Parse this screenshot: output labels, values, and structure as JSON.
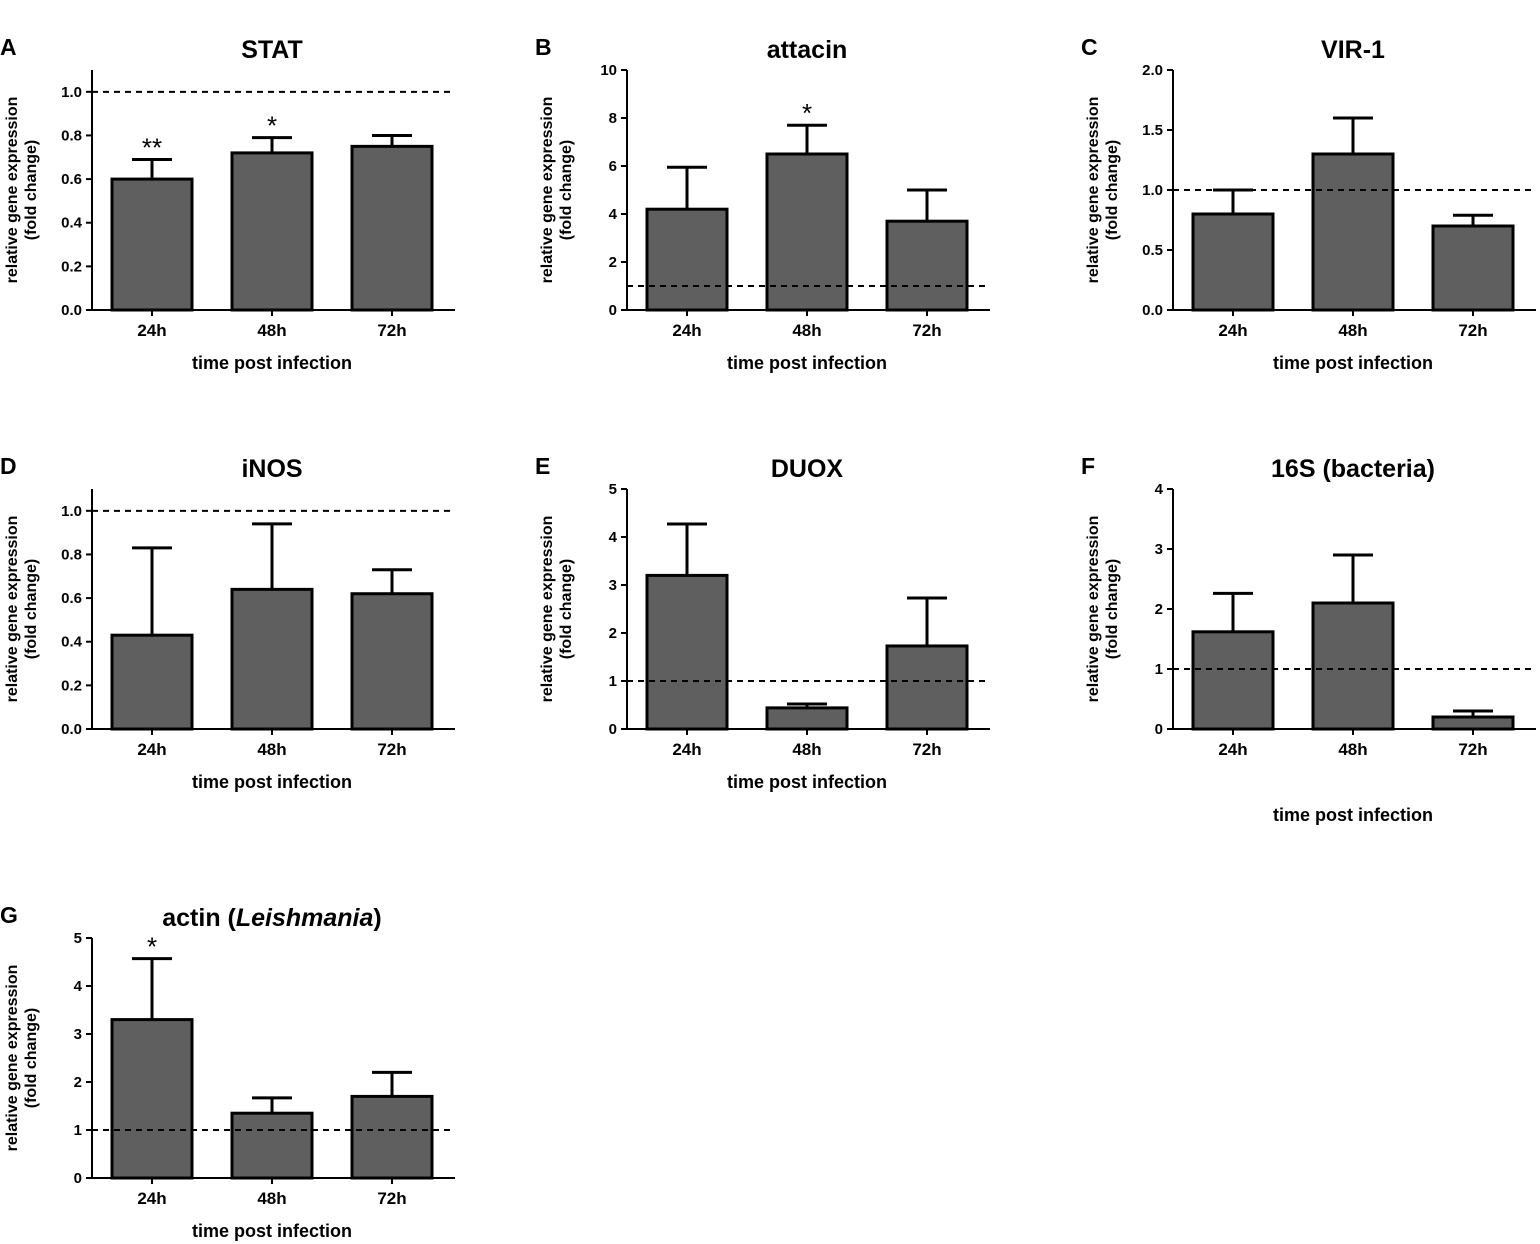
{
  "chart_data": [
    {
      "panel": "A",
      "type": "bar",
      "title": "STAT",
      "title_italic": "",
      "title_suffix": "",
      "ylabel": [
        "relative gene expression",
        "(fold change)"
      ],
      "xlabel": "time post infection",
      "categories": [
        "24h",
        "48h",
        "72h"
      ],
      "values": [
        0.6,
        0.72,
        0.75
      ],
      "errors_upper": [
        0.69,
        0.79,
        0.8
      ],
      "significance": [
        "**",
        "*",
        ""
      ],
      "ylim": [
        0,
        1.1
      ],
      "yticks": [
        0,
        0.2,
        0.4,
        0.6,
        0.8,
        1.0
      ],
      "tick_decimals": 1,
      "reference_line": 1.0
    },
    {
      "panel": "B",
      "type": "bar",
      "title": "attacin",
      "title_italic": "",
      "title_suffix": "",
      "ylabel": [
        "relative gene expression",
        "(fold change)"
      ],
      "xlabel": "time post infection",
      "categories": [
        "24h",
        "48h",
        "72h"
      ],
      "values": [
        4.2,
        6.5,
        3.7
      ],
      "errors_upper": [
        5.95,
        7.7,
        5.0
      ],
      "significance": [
        "",
        "*",
        ""
      ],
      "ylim": [
        0,
        10
      ],
      "yticks": [
        0,
        2,
        4,
        6,
        8,
        10
      ],
      "tick_decimals": 0,
      "reference_line": 1
    },
    {
      "panel": "C",
      "type": "bar",
      "title": "VIR-1",
      "title_italic": "",
      "title_suffix": "",
      "ylabel": [
        "relative gene expression",
        "(fold change)"
      ],
      "xlabel": "time post infection",
      "categories": [
        "24h",
        "48h",
        "72h"
      ],
      "values": [
        0.8,
        1.3,
        0.7
      ],
      "errors_upper": [
        1.0,
        1.6,
        0.79
      ],
      "significance": [
        "",
        "",
        ""
      ],
      "ylim": [
        0,
        2.0
      ],
      "yticks": [
        0,
        0.5,
        1.0,
        1.5,
        2.0
      ],
      "tick_decimals": 1,
      "reference_line": 1.0
    },
    {
      "panel": "D",
      "type": "bar",
      "title": "iNOS",
      "title_italic": "",
      "title_suffix": "",
      "ylabel": [
        "relative gene expression",
        "(fold change)"
      ],
      "xlabel": "time post infection",
      "categories": [
        "24h",
        "48h",
        "72h"
      ],
      "values": [
        0.43,
        0.64,
        0.62
      ],
      "errors_upper": [
        0.83,
        0.94,
        0.73
      ],
      "significance": [
        "",
        "",
        ""
      ],
      "ylim": [
        0,
        1.1
      ],
      "yticks": [
        0,
        0.2,
        0.4,
        0.6,
        0.8,
        1.0
      ],
      "tick_decimals": 1,
      "reference_line": 1.0
    },
    {
      "panel": "E",
      "type": "bar",
      "title": "DUOX",
      "title_italic": "",
      "title_suffix": "",
      "ylabel": [
        "relative gene expression",
        "(fold change)"
      ],
      "xlabel": "time post infection",
      "categories": [
        "24h",
        "48h",
        "72h"
      ],
      "values": [
        3.2,
        0.44,
        1.73
      ],
      "errors_upper": [
        4.27,
        0.52,
        2.73
      ],
      "significance": [
        "",
        "",
        ""
      ],
      "ylim": [
        0,
        5
      ],
      "yticks": [
        0,
        1,
        2,
        3,
        4,
        5
      ],
      "tick_decimals": 0,
      "reference_line": 1
    },
    {
      "panel": "F",
      "type": "bar",
      "title": "16S (bacteria)",
      "title_italic": "",
      "title_suffix": "",
      "ylabel": [
        "relative gene expression",
        "(fold change)"
      ],
      "xlabel": "time post infection",
      "categories": [
        "24h",
        "48h",
        "72h"
      ],
      "values": [
        1.62,
        2.1,
        0.2
      ],
      "errors_upper": [
        2.26,
        2.9,
        0.3
      ],
      "significance": [
        "",
        "",
        ""
      ],
      "ylim": [
        0,
        4
      ],
      "yticks": [
        0,
        1,
        2,
        3,
        4
      ],
      "tick_decimals": 0,
      "reference_line": 1
    },
    {
      "panel": "G",
      "type": "bar",
      "title": "actin (",
      "title_italic": "Leishmania",
      "title_suffix": ")",
      "ylabel": [
        "relative gene expression",
        "(fold change)"
      ],
      "xlabel": "time post infection",
      "categories": [
        "24h",
        "48h",
        "72h"
      ],
      "values": [
        3.3,
        1.35,
        1.7
      ],
      "errors_upper": [
        4.57,
        1.67,
        2.2
      ],
      "significance": [
        "*",
        "",
        ""
      ],
      "ylim": [
        0,
        5
      ],
      "yticks": [
        0,
        1,
        2,
        3,
        4,
        5
      ],
      "tick_decimals": 0,
      "reference_line": 1
    }
  ],
  "colors": {
    "bar": "#5f5f5f",
    "stroke": "#000000"
  }
}
